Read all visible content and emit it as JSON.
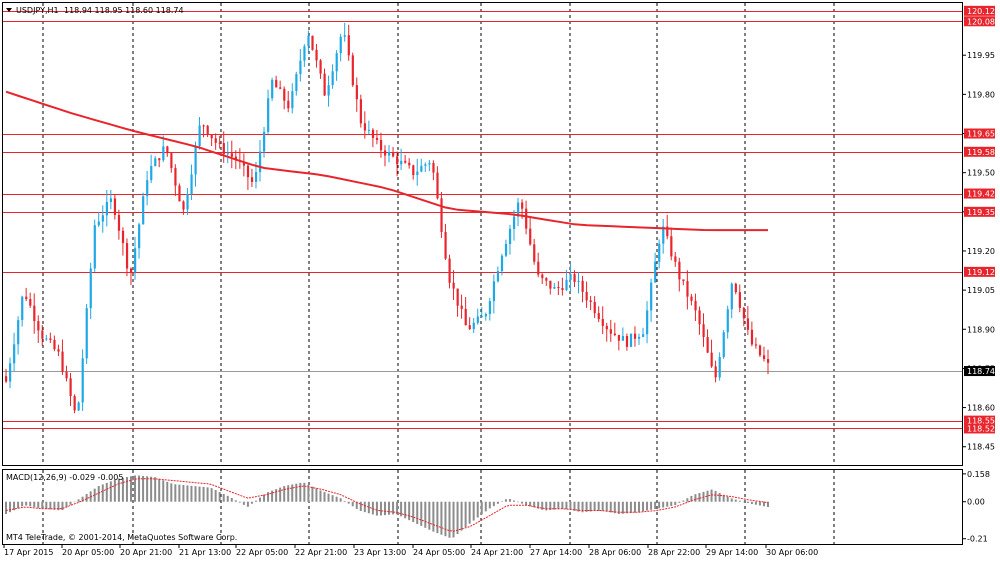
{
  "header": {
    "symbol_label": "USDJPY,H1",
    "ohlc": "118.94 118.95 118.60 118.74"
  },
  "indicator": {
    "label": "MACD(12,26,9) -0.029 -0.005"
  },
  "footer": {
    "copyright": "MT4 TeleTrade, © 2001-2014, MetaQuotes Software Corp."
  },
  "colors": {
    "bull": "#1FA8E6",
    "bear": "#E8252C",
    "ma": "#E8252C",
    "hline": "#E8252C",
    "current_line": "#9a9a9a",
    "price_tag_bg": "#E8252C",
    "current_tag_bg": "#000000",
    "histogram": "#8c8c8c",
    "signal": "#E8252C"
  },
  "chart_data": [
    {
      "type": "candlestick",
      "series_name": "USDJPY,H1",
      "ylim": [
        118.38,
        120.15
      ],
      "grid": "vertical dotted",
      "y_ticks": [
        "119.95",
        "119.80",
        "119.65",
        "119.50",
        "119.35",
        "119.20",
        "119.05",
        "118.90",
        "118.75",
        "118.60",
        "118.45"
      ],
      "x_ticks": [
        "17 Apr 2015",
        "20 Apr 05:00",
        "20 Apr 21:00",
        "21 Apr 13:00",
        "22 Apr 05:00",
        "22 Apr 21:00",
        "23 Apr 13:00",
        "24 Apr 05:00",
        "24 Apr 21:00",
        "27 Apr 14:00",
        "28 Apr 06:00",
        "28 Apr 22:00",
        "29 Apr 14:00",
        "30 Apr 06:00"
      ],
      "horizontal_levels": [
        {
          "value": 120.12,
          "label": "120.12"
        },
        {
          "value": 120.08,
          "label": "120.08"
        },
        {
          "value": 119.65,
          "label": "119.65"
        },
        {
          "value": 119.58,
          "label": "119.58"
        },
        {
          "value": 119.42,
          "label": "119.42"
        },
        {
          "value": 119.35,
          "label": "119.35"
        },
        {
          "value": 119.12,
          "label": "119.12"
        },
        {
          "value": 118.55,
          "label": "118.55"
        },
        {
          "value": 118.52,
          "label": "118.52"
        }
      ],
      "current_price": {
        "value": 118.74,
        "label": "118.74"
      },
      "moving_average_keypoints": [
        119.81,
        119.73,
        119.66,
        119.6,
        119.52,
        119.49,
        119.44,
        119.36,
        119.34,
        119.3,
        119.29,
        119.28,
        119.28
      ],
      "close_keypoints": [
        118.7,
        119.05,
        118.88,
        118.8,
        118.55,
        119.3,
        119.4,
        119.1,
        119.5,
        119.6,
        119.35,
        119.7,
        119.6,
        119.55,
        119.45,
        119.85,
        119.75,
        120.05,
        119.8,
        120.05,
        119.7,
        119.6,
        119.55,
        119.5,
        119.55,
        119.1,
        118.9,
        118.95,
        119.2,
        119.4,
        119.1,
        119.05,
        119.1,
        119.0,
        118.9,
        118.85,
        118.9,
        119.3,
        119.1,
        118.95,
        118.7,
        119.1,
        118.85,
        118.76
      ]
    },
    {
      "type": "bar",
      "series_name": "MACD(12,26,9)",
      "main": -0.029,
      "signal": -0.005,
      "ylim": [
        -0.24,
        0.18
      ],
      "y_ticks": [
        "0.158",
        "0.00",
        "-0.21"
      ],
      "histogram_keypoints": [
        -0.07,
        -0.02,
        -0.04,
        -0.05,
        0.02,
        0.09,
        0.13,
        0.15,
        0.14,
        0.1,
        0.09,
        0.08,
        0.03,
        -0.03,
        0.05,
        0.09,
        0.11,
        0.06,
        0.02,
        -0.05,
        -0.08,
        -0.07,
        -0.12,
        -0.17,
        -0.21,
        -0.12,
        -0.04,
        0.02,
        -0.02,
        -0.05,
        -0.04,
        -0.06,
        -0.05,
        -0.07,
        -0.06,
        -0.04,
        -0.02,
        0.04,
        0.07,
        0.02,
        -0.01,
        -0.03
      ],
      "signal_keypoints": [
        -0.05,
        -0.03,
        -0.04,
        -0.04,
        0.0,
        0.05,
        0.1,
        0.13,
        0.13,
        0.12,
        0.11,
        0.1,
        0.06,
        0.02,
        0.04,
        0.07,
        0.09,
        0.07,
        0.04,
        -0.01,
        -0.05,
        -0.06,
        -0.09,
        -0.13,
        -0.17,
        -0.14,
        -0.08,
        -0.02,
        -0.02,
        -0.04,
        -0.04,
        -0.05,
        -0.05,
        -0.06,
        -0.06,
        -0.05,
        -0.03,
        0.01,
        0.04,
        0.03,
        0.01,
        -0.005
      ]
    }
  ]
}
